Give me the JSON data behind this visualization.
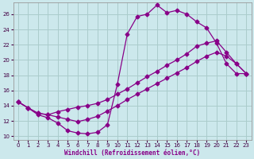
{
  "xlabel": "Windchill (Refroidissement éolien,°C)",
  "bg_color": "#cce8ec",
  "grid_color": "#aacccc",
  "line_color": "#880088",
  "xlim": [
    -0.5,
    23.5
  ],
  "ylim": [
    9.5,
    27.5
  ],
  "yticks": [
    10,
    12,
    14,
    16,
    18,
    20,
    22,
    24,
    26
  ],
  "xticks": [
    0,
    1,
    2,
    3,
    4,
    5,
    6,
    7,
    8,
    9,
    10,
    11,
    12,
    13,
    14,
    15,
    16,
    17,
    18,
    19,
    20,
    21,
    22,
    23
  ],
  "s1_x": [
    0,
    1,
    2,
    3,
    4,
    5,
    6,
    7,
    8,
    9,
    10,
    11,
    12,
    13,
    14,
    15,
    16,
    17,
    18,
    19,
    20,
    21,
    22,
    23
  ],
  "s1_y": [
    14.5,
    13.7,
    12.8,
    12.4,
    11.7,
    10.7,
    10.4,
    10.3,
    10.5,
    11.5,
    16.8,
    23.4,
    25.7,
    26.0,
    27.2,
    26.2,
    26.5,
    26.0,
    25.0,
    24.2,
    22.2,
    19.5,
    18.2,
    18.2
  ],
  "s2_x": [
    0,
    1,
    2,
    3,
    4,
    5,
    6,
    7,
    8,
    9,
    10,
    11,
    12,
    13,
    14,
    15,
    16,
    17,
    18,
    19,
    20,
    21,
    22,
    23
  ],
  "s2_y": [
    14.5,
    13.7,
    13.0,
    12.8,
    13.2,
    13.5,
    13.8,
    14.0,
    14.3,
    14.8,
    15.5,
    16.2,
    17.0,
    17.8,
    18.5,
    19.3,
    20.0,
    20.8,
    21.8,
    22.2,
    22.5,
    21.0,
    19.5,
    18.2
  ],
  "s3_x": [
    0,
    1,
    2,
    3,
    4,
    5,
    6,
    7,
    8,
    9,
    10,
    11,
    12,
    13,
    14,
    15,
    16,
    17,
    18,
    19,
    20,
    21,
    22,
    23
  ],
  "s3_y": [
    14.5,
    13.7,
    13.0,
    12.8,
    12.5,
    12.2,
    11.9,
    12.2,
    12.6,
    13.3,
    14.0,
    14.8,
    15.5,
    16.2,
    16.9,
    17.6,
    18.3,
    19.0,
    19.8,
    20.5,
    21.0,
    20.5,
    19.5,
    18.2
  ]
}
